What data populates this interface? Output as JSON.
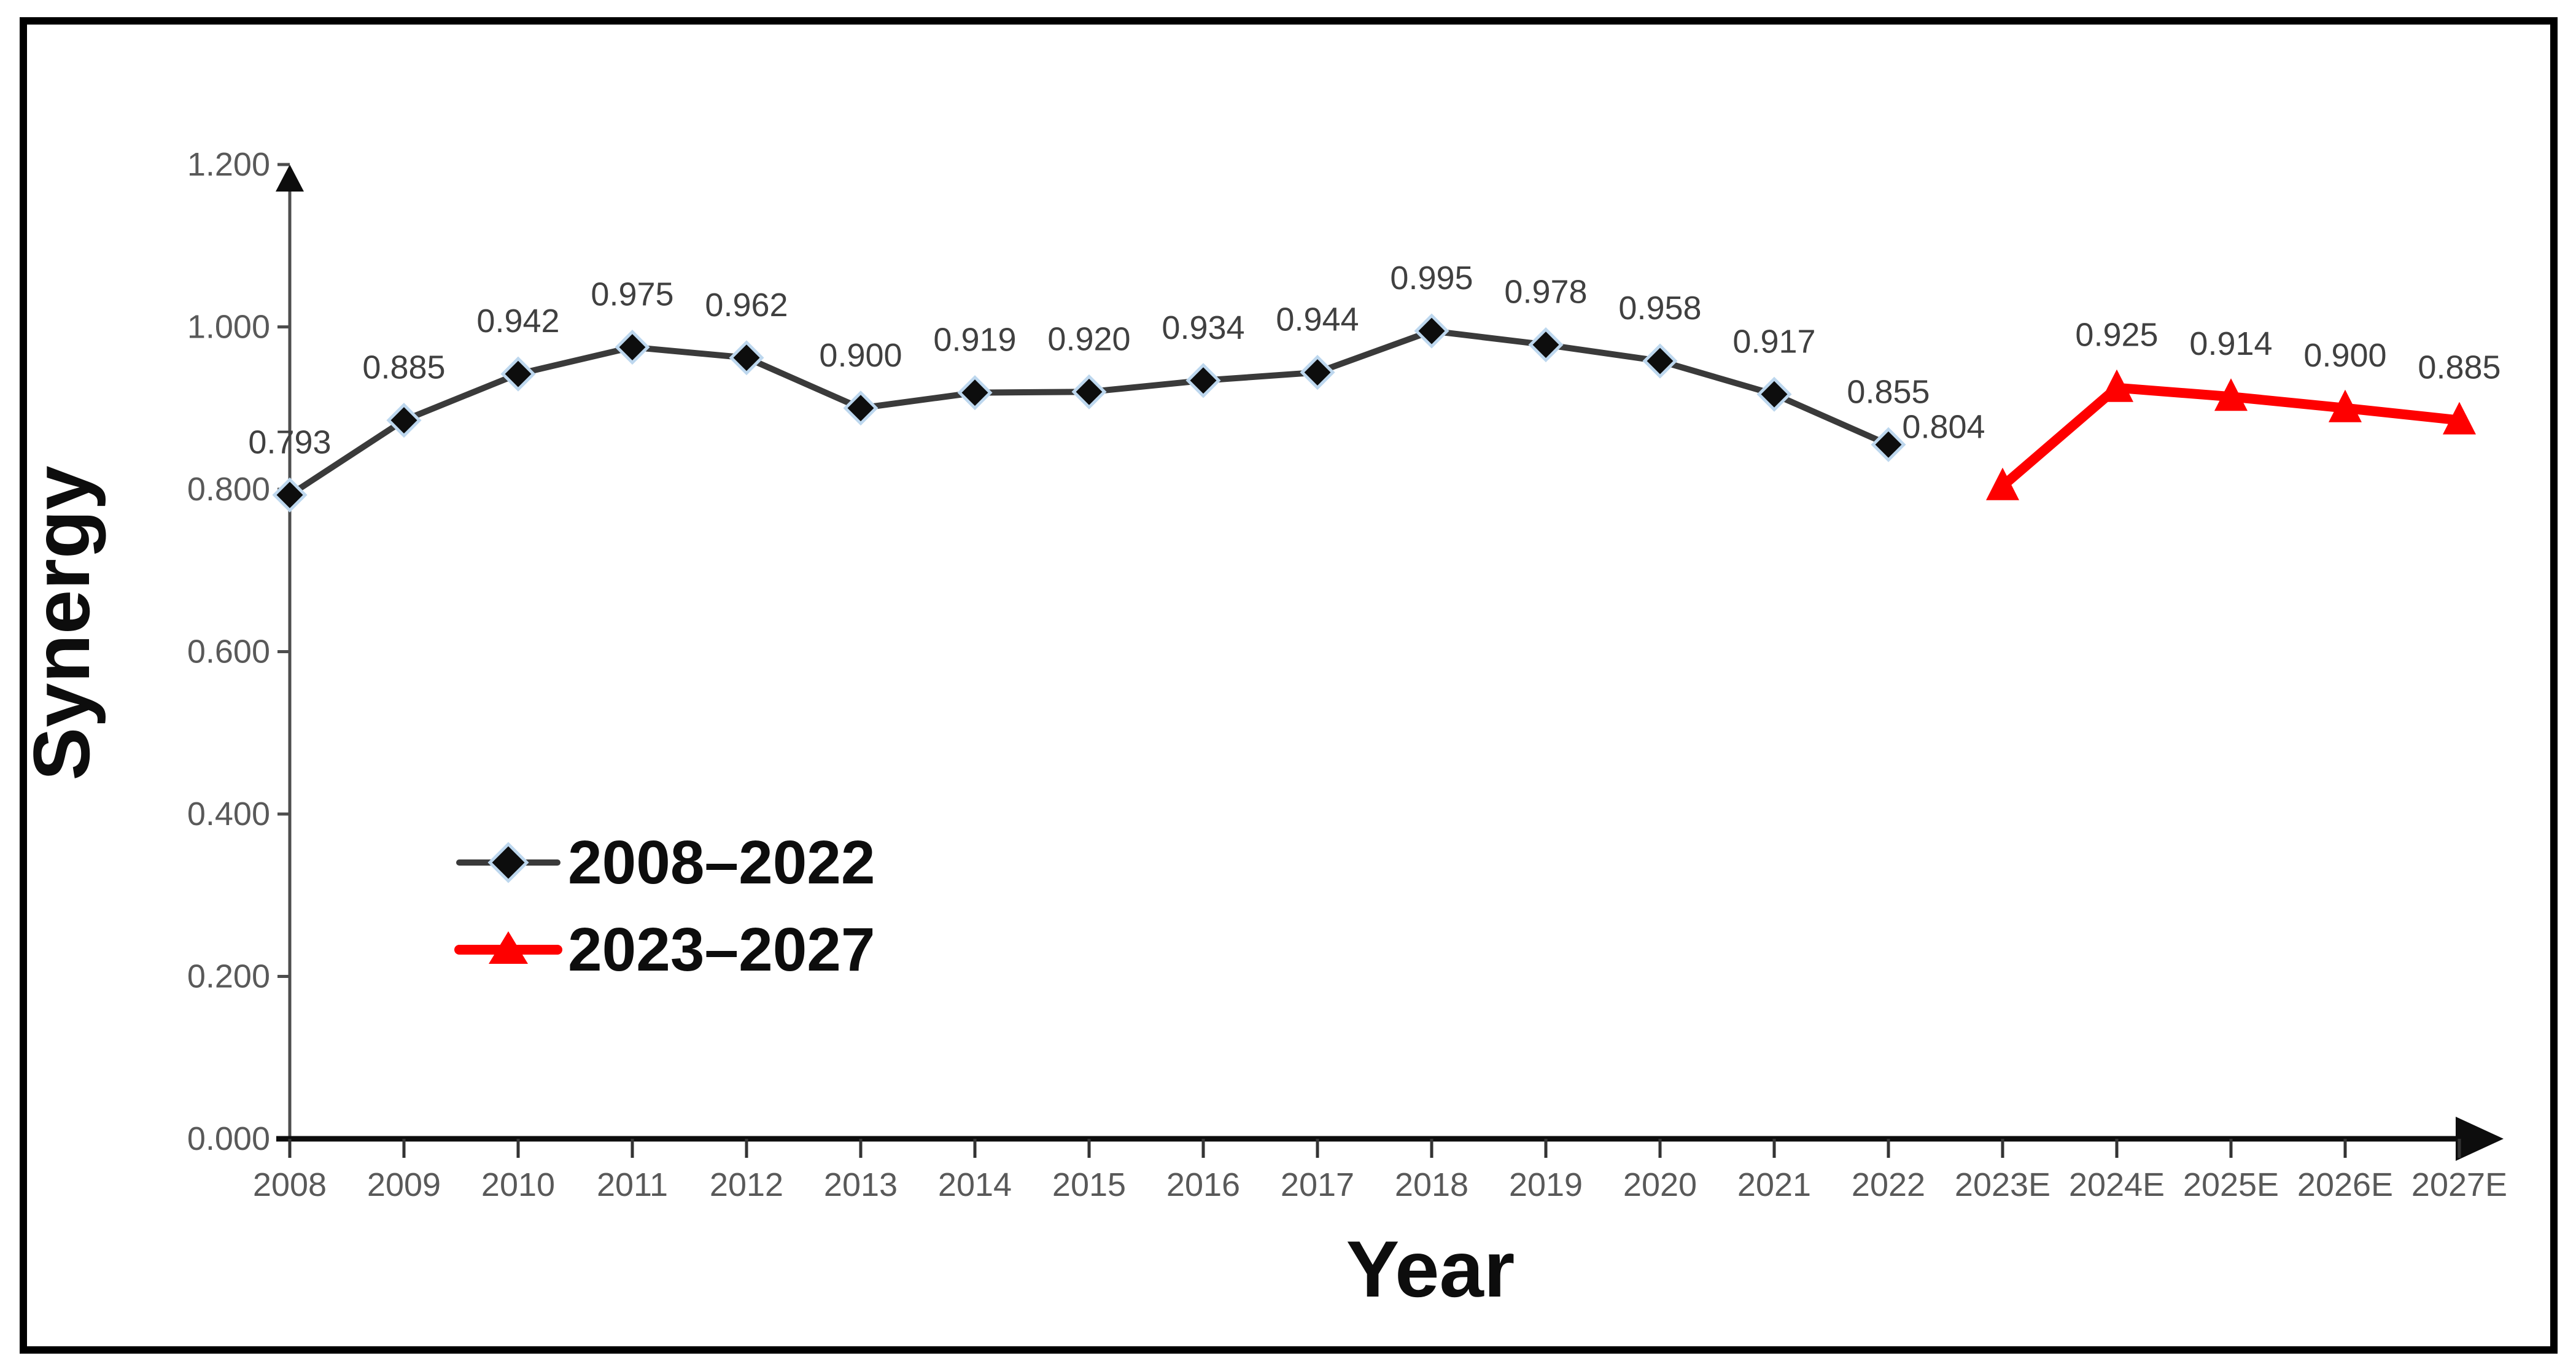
{
  "figure": {
    "background": "#ffffff",
    "border_color": "#000000"
  },
  "colors": {
    "black_series": "#3a3a3a",
    "red_series": "#fe0000",
    "marker_fill_black": "#0d0d0d",
    "marker_edge_blue": "#bdd7ee",
    "tick_label": "#595959",
    "data_label": "#404040",
    "axis_line": "#4d4d4d",
    "x_axis_line": "#0d0d0d",
    "axis_title": "#0d0d0d",
    "legend_text": "#0d0d0d"
  },
  "chart_data": {
    "type": "line",
    "title": "",
    "xlabel": "Year",
    "ylabel": "Synergy",
    "ylim": [
      0,
      1.2
    ],
    "y_tick_step": 0.2,
    "y_ticks": [
      "0.000",
      "0.200",
      "0.400",
      "0.600",
      "0.800",
      "1.000",
      "1.200"
    ],
    "grid": false,
    "axis_arrows": true,
    "legend_position": "inside-left-middle",
    "categories": [
      "2008",
      "2009",
      "2010",
      "2011",
      "2012",
      "2013",
      "2014",
      "2015",
      "2016",
      "2017",
      "2018",
      "2019",
      "2020",
      "2021",
      "2022",
      "2023E",
      "2024E",
      "2025E",
      "2026E",
      "2027E"
    ],
    "series": [
      {
        "name": "2008–2022",
        "marker": "diamond",
        "color": "#3a3a3a",
        "marker_fill": "#0d0d0d",
        "marker_edge": "#bdd7ee",
        "line_width": 10,
        "values": [
          0.793,
          0.885,
          0.942,
          0.975,
          0.962,
          0.9,
          0.919,
          0.92,
          0.934,
          0.944,
          0.995,
          0.978,
          0.958,
          0.917,
          0.855,
          null,
          null,
          null,
          null,
          null
        ],
        "label_offsets": {}
      },
      {
        "name": "2023–2027",
        "marker": "triangle",
        "color": "#fe0000",
        "marker_fill": "#fe0000",
        "marker_edge": "#fe0000",
        "line_width": 16,
        "values": [
          null,
          null,
          null,
          null,
          null,
          null,
          null,
          null,
          null,
          null,
          null,
          null,
          null,
          null,
          null,
          0.804,
          0.925,
          0.914,
          0.9,
          0.885
        ],
        "label_offsets": {
          "2023E": [
            -96,
            -78
          ]
        }
      }
    ],
    "data_label_format": "3dp",
    "data_labels_shown": [
      "0.793",
      "0.885",
      "0.942",
      "0.975",
      "0.962",
      "0.900",
      "0.919",
      "0.920",
      "0.934",
      "0.944",
      "0.995",
      "0.978",
      "0.958",
      "0.917",
      "0.855",
      "0.804",
      "0.925",
      "0.914",
      "0.900",
      "0.885"
    ]
  }
}
